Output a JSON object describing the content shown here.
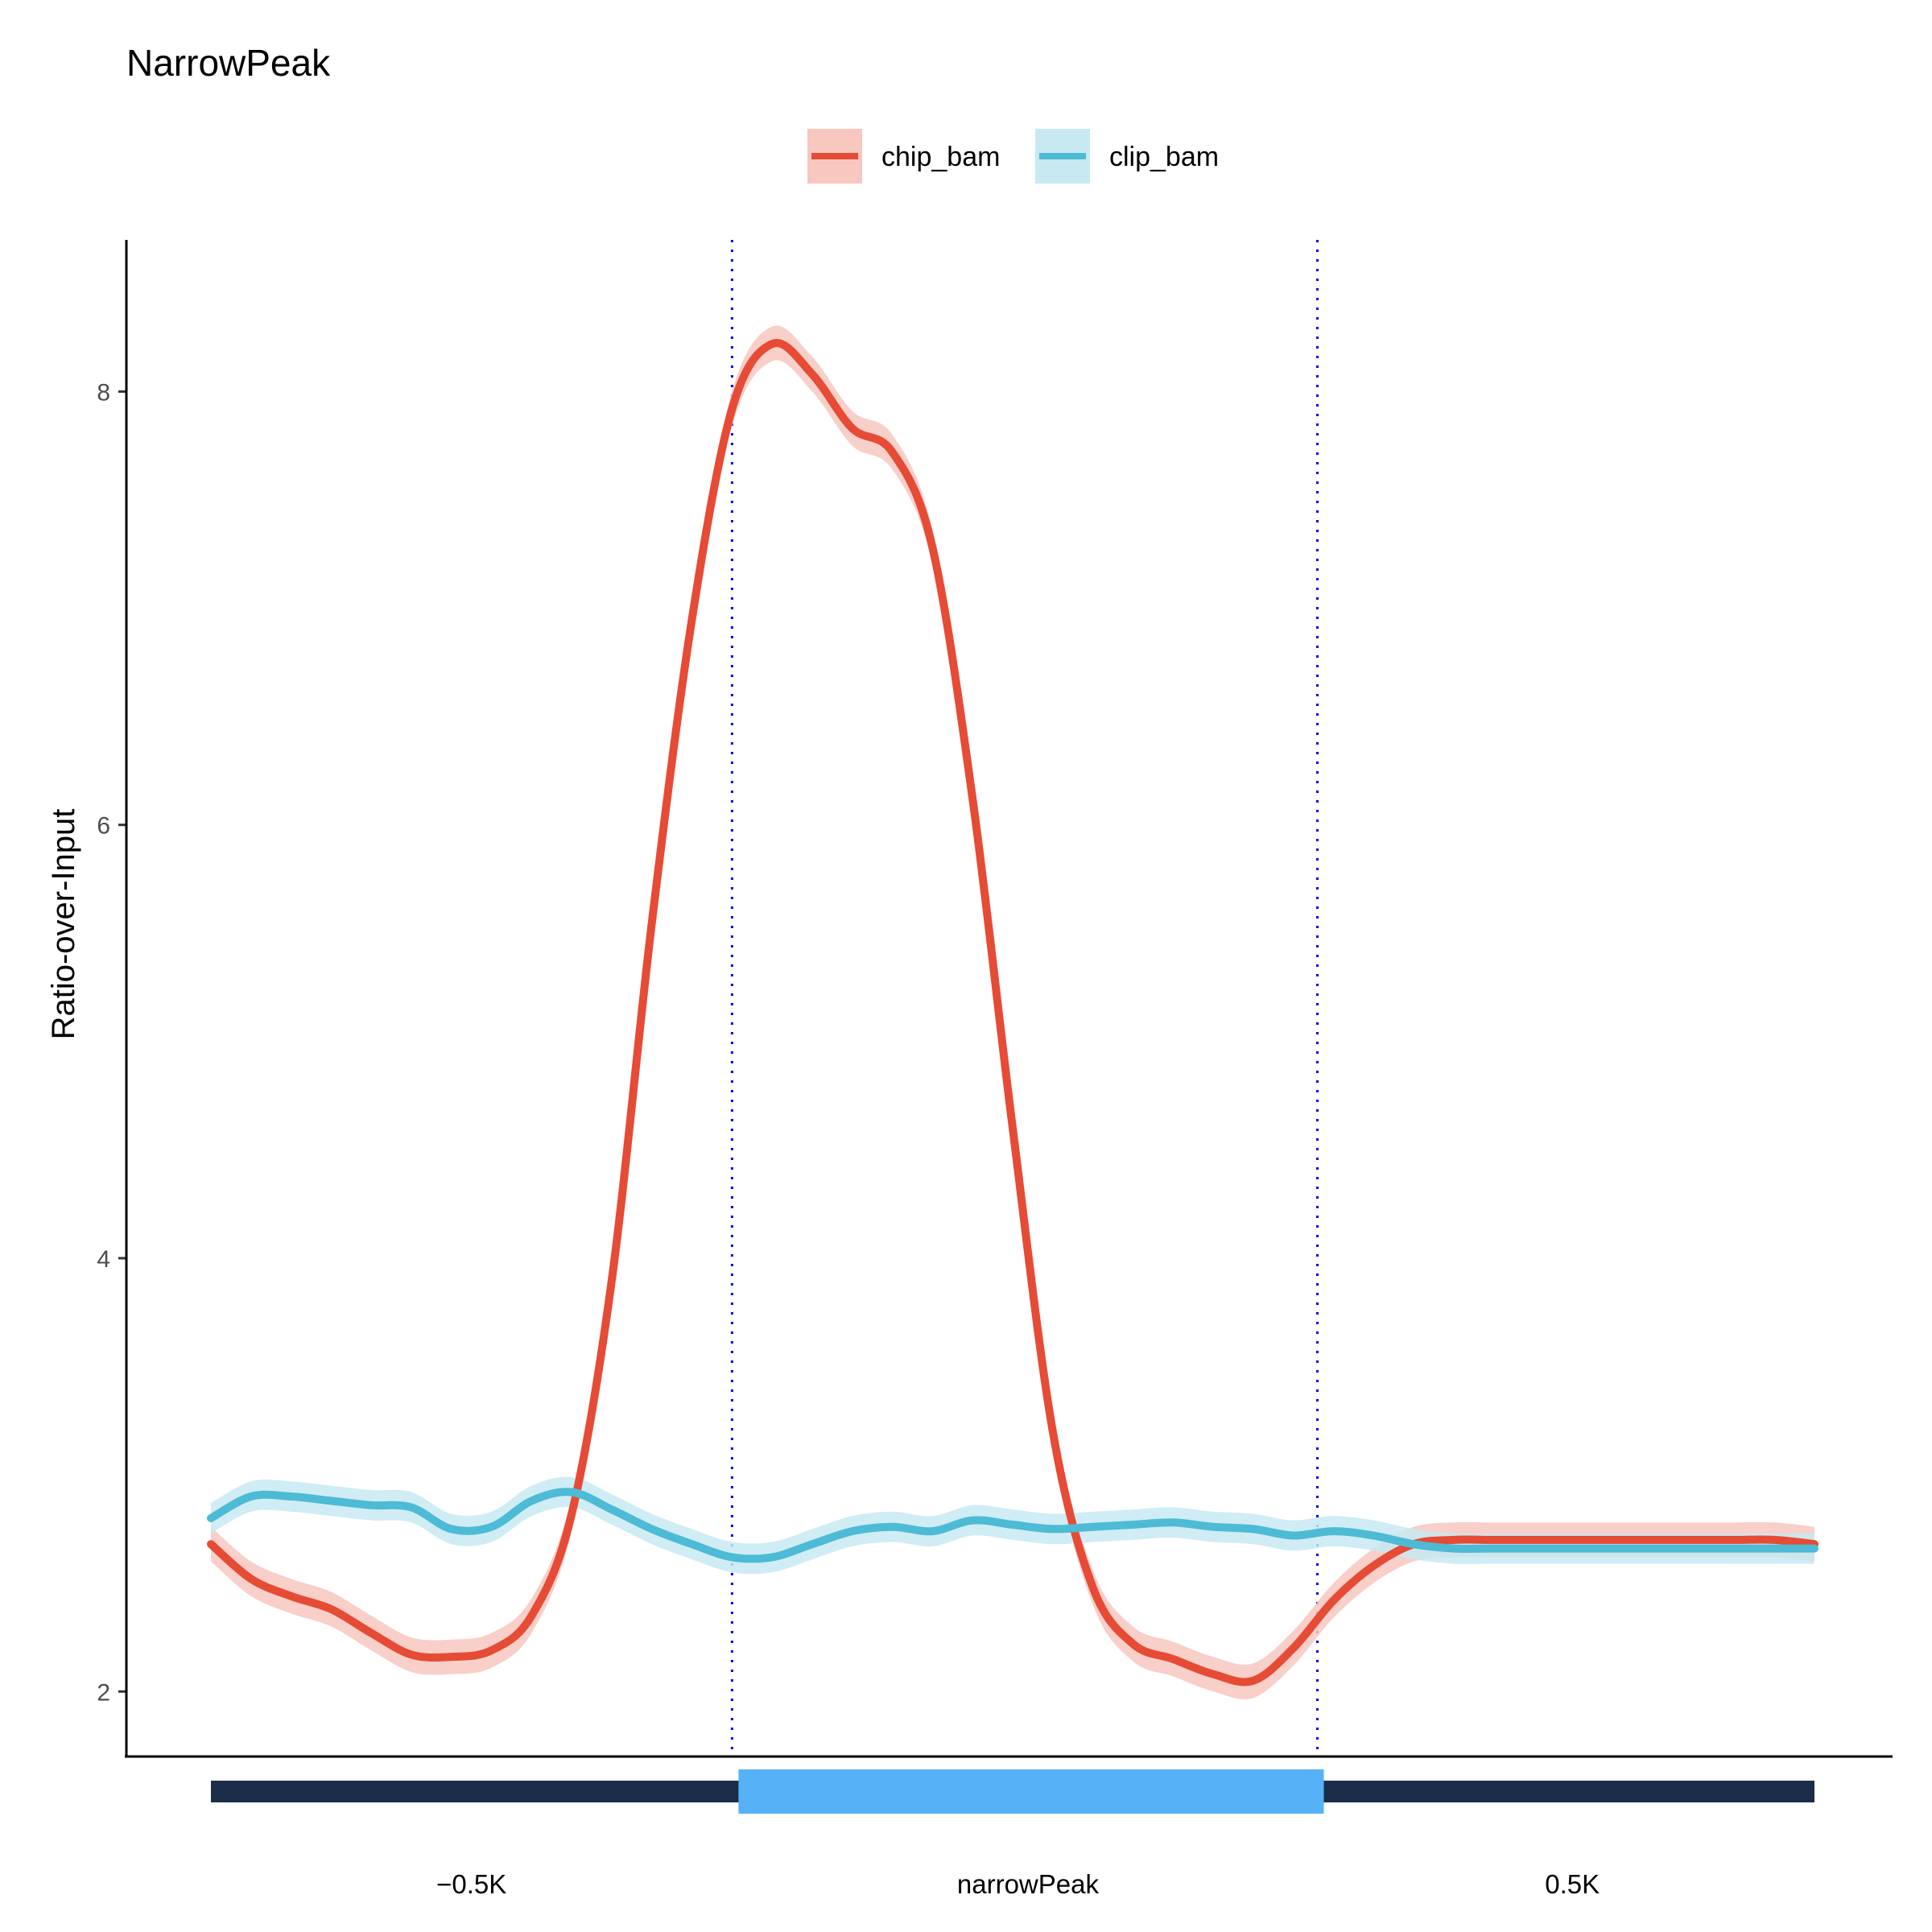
{
  "chart_data": {
    "type": "line",
    "title": "NarrowPeak",
    "ylabel": "Ratio-over-Input",
    "xlabel": "",
    "ylim": [
      1.7,
      8.7
    ],
    "yticks": [
      2,
      4,
      6,
      8
    ],
    "grid": false,
    "legend_position": "top",
    "x_labels": [
      "−0.5K",
      "narrowPeak",
      "0.5K"
    ],
    "x": [
      0,
      0.025,
      0.05,
      0.075,
      0.1,
      0.125,
      0.15,
      0.175,
      0.2,
      0.225,
      0.25,
      0.275,
      0.3,
      0.325,
      0.35,
      0.375,
      0.4,
      0.425,
      0.45,
      0.475,
      0.5,
      0.525,
      0.55,
      0.575,
      0.6,
      0.625,
      0.65,
      0.675,
      0.7,
      0.725,
      0.75,
      0.775,
      0.8,
      0.825,
      0.85,
      0.875,
      0.9,
      0.925,
      0.95,
      0.975,
      1
    ],
    "series": [
      {
        "name": "chip_bam",
        "color": "#E64B35",
        "band_color": "#F7C7C0",
        "values": [
          2.68,
          2.52,
          2.44,
          2.38,
          2.27,
          2.17,
          2.16,
          2.19,
          2.35,
          2.82,
          3.9,
          5.55,
          6.95,
          7.92,
          8.22,
          8.08,
          7.83,
          7.72,
          7.28,
          6.12,
          4.6,
          3.2,
          2.48,
          2.22,
          2.15,
          2.08,
          2.05,
          2.2,
          2.42,
          2.58,
          2.68,
          2.7,
          2.7,
          2.7,
          2.7,
          2.7,
          2.7,
          2.7,
          2.7,
          2.7,
          2.68
        ],
        "band": 0.08
      },
      {
        "name": "clip_bam",
        "color": "#4DBBD5",
        "band_color": "#C8E9F2",
        "values": [
          2.8,
          2.9,
          2.9,
          2.88,
          2.86,
          2.85,
          2.75,
          2.76,
          2.88,
          2.92,
          2.84,
          2.75,
          2.68,
          2.62,
          2.62,
          2.68,
          2.74,
          2.76,
          2.74,
          2.79,
          2.77,
          2.75,
          2.76,
          2.77,
          2.78,
          2.76,
          2.75,
          2.72,
          2.74,
          2.72,
          2.68,
          2.66,
          2.66,
          2.66,
          2.66,
          2.66,
          2.66,
          2.66,
          2.66,
          2.66,
          2.66
        ],
        "band": 0.07
      }
    ],
    "reference_lines": [
      0.325,
      0.69
    ],
    "peak_region": {
      "start": 0.325,
      "end": 0.69,
      "body_color": "#1B2D48",
      "peak_color": "#56B1F7",
      "line_color": "#0000EE"
    }
  }
}
